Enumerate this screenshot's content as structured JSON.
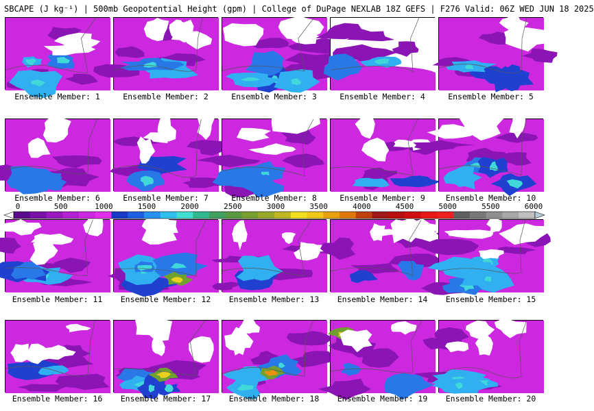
{
  "header": {
    "title": "SBCAPE (J kg⁻¹) | 500mb Geopotential Height (gpm) | College of DuPage NEXLAB 18Z GEFS | F276 Valid: 06Z WED JUN 18 2025"
  },
  "colorbar": {
    "ticks": [
      "0",
      "500",
      "1000",
      "1500",
      "2000",
      "2500",
      "3000",
      "3500",
      "4000",
      "4500",
      "5000",
      "5500",
      "6000"
    ],
    "colors": [
      "#ffffff",
      "#5a0a8c",
      "#7a10a8",
      "#9a18c0",
      "#b420d4",
      "#cc28e0",
      "#e030ec",
      "#1838c8",
      "#2060e0",
      "#2890f0",
      "#30c0f0",
      "#40e0d0",
      "#30b890",
      "#40a060",
      "#5a9a40",
      "#78a030",
      "#98a828",
      "#c0b820",
      "#f0e020",
      "#f0c818",
      "#e8a010",
      "#e07808",
      "#c04010",
      "#a01818",
      "#b81010",
      "#d01010",
      "#e81818",
      "#f02020",
      "#606060",
      "#787878",
      "#909090",
      "#a8a8a8",
      "#c0c0c0",
      "#b8ccd8"
    ]
  },
  "members": [
    {
      "label": "Ensemble Member: 1"
    },
    {
      "label": "Ensemble Member: 2"
    },
    {
      "label": "Ensemble Member: 3"
    },
    {
      "label": "Ensemble Member: 4"
    },
    {
      "label": "Ensemble Member: 5"
    },
    {
      "label": "Ensemble Member: 6"
    },
    {
      "label": "Ensemble Member: 7"
    },
    {
      "label": "Ensemble Member: 8"
    },
    {
      "label": "Ensemble Member: 9"
    },
    {
      "label": "Ensemble Member: 10"
    },
    {
      "label": "Ensemble Member: 11"
    },
    {
      "label": "Ensemble Member: 12"
    },
    {
      "label": "Ensemble Member: 13"
    },
    {
      "label": "Ensemble Member: 14"
    },
    {
      "label": "Ensemble Member: 15"
    },
    {
      "label": "Ensemble Member: 16"
    },
    {
      "label": "Ensemble Member: 17"
    },
    {
      "label": "Ensemble Member: 18"
    },
    {
      "label": "Ensemble Member: 19"
    },
    {
      "label": "Ensemble Member: 20"
    }
  ]
}
